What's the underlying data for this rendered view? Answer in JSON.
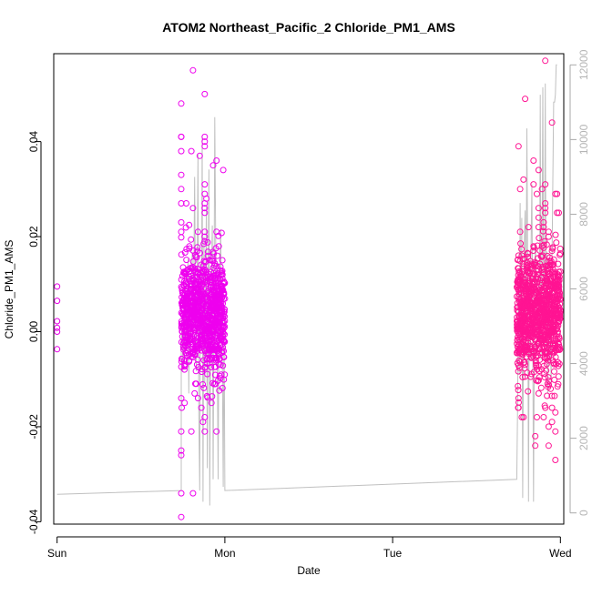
{
  "chart_data": {
    "type": "scatter",
    "title": "ATOM2 Northeast_Pacific_2 Chloride_PM1_AMS",
    "xlabel": "Date",
    "ylabel": "Chloride_PM1_AMS",
    "x_unit": "days",
    "xlim": [
      -0.02,
      3.02
    ],
    "ylim": [
      -0.0405,
      0.0585
    ],
    "y2lim": [
      -300,
      12300
    ],
    "x_ticks": [
      {
        "value": 0,
        "label": "Sun"
      },
      {
        "value": 1,
        "label": "Mon"
      },
      {
        "value": 2,
        "label": "Tue"
      },
      {
        "value": 3,
        "label": "Wed"
      }
    ],
    "y_ticks": [
      {
        "value": -0.04,
        "label": "-0.04"
      },
      {
        "value": -0.02,
        "label": "-0.02"
      },
      {
        "value": 0.0,
        "label": "0.00"
      },
      {
        "value": 0.02,
        "label": "0.02"
      },
      {
        "value": 0.04,
        "label": "0.04"
      }
    ],
    "y2_ticks": [
      {
        "value": 0,
        "label": "0"
      },
      {
        "value": 2000,
        "label": "2000"
      },
      {
        "value": 4000,
        "label": "4000"
      },
      {
        "value": 6000,
        "label": "6000"
      },
      {
        "value": 8000,
        "label": "8000"
      },
      {
        "value": 10000,
        "label": "10000"
      },
      {
        "value": 12000,
        "label": "12000"
      }
    ],
    "grid": false,
    "legend": "none",
    "series": [
      {
        "kind": "points",
        "marker": "open-circle",
        "color": "#e600e6",
        "x": [
          0.0,
          0.0,
          0.0,
          0.0,
          0.0,
          0.0
        ],
        "y": [
          0.0095,
          0.0065,
          0.0022,
          0.0008,
          0.0,
          -0.0037
        ]
      },
      {
        "kind": "points",
        "marker": "open-circle",
        "color": "#ee00ee",
        "cluster": {
          "x_range": [
            0.74,
            1.0
          ],
          "y_center": 0.0035,
          "y_spread": 0.006,
          "n": 900
        },
        "x": [
          0.81,
          0.74,
          0.88,
          0.74,
          0.74,
          0.74,
          0.8,
          0.88,
          0.88,
          0.88,
          0.85,
          0.88,
          0.88,
          0.95,
          0.99,
          0.93,
          0.74,
          0.74,
          0.88,
          0.88,
          0.89,
          0.88,
          0.81,
          0.88,
          0.88,
          0.74,
          0.88,
          0.84,
          0.74,
          0.93,
          0.95,
          0.74,
          0.77,
          0.86,
          0.87,
          0.92,
          0.8,
          0.82,
          0.84,
          0.88,
          0.88,
          0.74,
          0.81,
          0.95,
          0.74,
          0.74,
          0.74,
          0.74,
          0.74,
          0.76
        ],
        "y": [
          0.055,
          0.048,
          0.05,
          0.041,
          0.041,
          0.038,
          0.038,
          0.041,
          0.04,
          0.039,
          0.037,
          0.031,
          0.029,
          0.036,
          0.034,
          0.035,
          0.033,
          0.03,
          0.027,
          0.025,
          0.028,
          0.026,
          0.026,
          0.021,
          0.02,
          0.023,
          0.019,
          0.021,
          0.021,
          0.015,
          0.021,
          0.027,
          0.027,
          -0.016,
          -0.019,
          -0.015,
          -0.021,
          -0.013,
          -0.014,
          -0.018,
          -0.021,
          -0.021,
          -0.034,
          -0.021,
          -0.025,
          -0.026,
          -0.039,
          -0.034,
          -0.014,
          -0.015
        ]
      },
      {
        "kind": "points",
        "marker": "open-circle",
        "color": "#ff1493",
        "cluster": {
          "x_range": [
            2.74,
            3.0
          ],
          "y_center": 0.0035,
          "y_spread": 0.0065,
          "n": 950
        },
        "x": [
          2.91,
          2.79,
          2.95,
          2.75,
          2.91,
          2.86,
          2.97,
          2.87,
          2.78,
          2.84,
          2.76,
          2.84,
          2.89,
          2.87,
          2.87,
          2.91,
          2.9,
          2.9,
          2.81,
          2.87,
          2.98,
          2.98,
          2.91,
          2.91,
          2.76,
          2.75,
          2.93,
          2.93,
          2.89,
          2.77,
          2.95,
          2.93,
          2.99,
          2.87,
          2.91,
          2.86,
          2.97,
          2.97,
          2.75,
          2.77,
          2.78,
          2.85,
          2.85,
          2.9,
          2.93,
          2.97,
          2.75,
          2.95,
          2.95,
          2.93
        ],
        "y": [
          0.057,
          0.049,
          0.044,
          0.039,
          0.031,
          0.029,
          0.029,
          0.034,
          0.032,
          0.036,
          0.03,
          0.031,
          0.03,
          0.026,
          0.024,
          0.025,
          0.023,
          0.022,
          0.022,
          0.022,
          0.025,
          0.029,
          0.027,
          0.026,
          0.021,
          0.016,
          0.021,
          0.02,
          0.018,
          0.016,
          0.017,
          0.014,
          0.025,
          -0.013,
          -0.016,
          -0.018,
          -0.021,
          -0.017,
          -0.014,
          -0.018,
          -0.018,
          -0.022,
          -0.024,
          -0.018,
          -0.024,
          -0.027,
          -0.016,
          -0.016,
          -0.019,
          -0.02
        ]
      },
      {
        "kind": "line",
        "axis": "right",
        "color": "#c0c0c0",
        "x": [
          0.0,
          0.74,
          0.74,
          0.745,
          0.75,
          0.755,
          0.76,
          0.765,
          0.77,
          0.775,
          0.78,
          0.785,
          0.79,
          0.795,
          0.8,
          0.805,
          0.81,
          0.815,
          0.82,
          0.825,
          0.83,
          0.835,
          0.84,
          0.845,
          0.85,
          0.855,
          0.86,
          0.865,
          0.87,
          0.875,
          0.88,
          0.885,
          0.89,
          0.895,
          0.9,
          0.905,
          0.91,
          0.915,
          0.92,
          0.925,
          0.93,
          0.935,
          0.94,
          0.945,
          0.95,
          0.955,
          0.96,
          0.965,
          0.97,
          0.975,
          0.98,
          0.985,
          0.99,
          0.995,
          1.0,
          1.0,
          2.74,
          2.745,
          2.75,
          2.755,
          2.76,
          2.765,
          2.77,
          2.775,
          2.78,
          2.785,
          2.79,
          2.795,
          2.8,
          2.805,
          2.81,
          2.815,
          2.82,
          2.825,
          2.83,
          2.835,
          2.84,
          2.845,
          2.85,
          2.855,
          2.86,
          2.865,
          2.87,
          2.875,
          2.88,
          2.885,
          2.89,
          2.895,
          2.9,
          2.905,
          2.91,
          2.915,
          2.92,
          2.925,
          2.93,
          2.935,
          2.94,
          2.945,
          2.95,
          2.96,
          2.965,
          2.97,
          2.975,
          2.98
        ],
        "y": [
          500,
          600,
          4300,
          5200,
          3800,
          5500,
          4000,
          6100,
          4500,
          5200,
          6800,
          3200,
          6000,
          4200,
          5400,
          7000,
          4700,
          6300,
          9000,
          5200,
          3800,
          6500,
          9600,
          2600,
          600,
          6700,
          4500,
          10100,
          300,
          7400,
          3500,
          5600,
          8200,
          1200,
          6000,
          9200,
          200,
          4500,
          6300,
          7700,
          900,
          5300,
          10600,
          7300,
          6000,
          4100,
          900,
          5200,
          6300,
          7600,
          5500,
          4200,
          700,
          5300,
          600,
          600,
          900,
          2800,
          6200,
          3700,
          8300,
          4500,
          7900,
          400,
          5100,
          7300,
          8100,
          5200,
          10300,
          6500,
          300,
          6500,
          4200,
          7200,
          8800,
          5000,
          300,
          5400,
          7200,
          6600,
          4400,
          4900,
          6000,
          4700,
          11200,
          4100,
          6700,
          11400,
          5000,
          6200,
          11500,
          4300,
          7000,
          3200,
          5000,
          6000,
          4600,
          3500,
          6800,
          11000,
          11000,
          11200,
          12000,
          12000
        ]
      }
    ]
  }
}
